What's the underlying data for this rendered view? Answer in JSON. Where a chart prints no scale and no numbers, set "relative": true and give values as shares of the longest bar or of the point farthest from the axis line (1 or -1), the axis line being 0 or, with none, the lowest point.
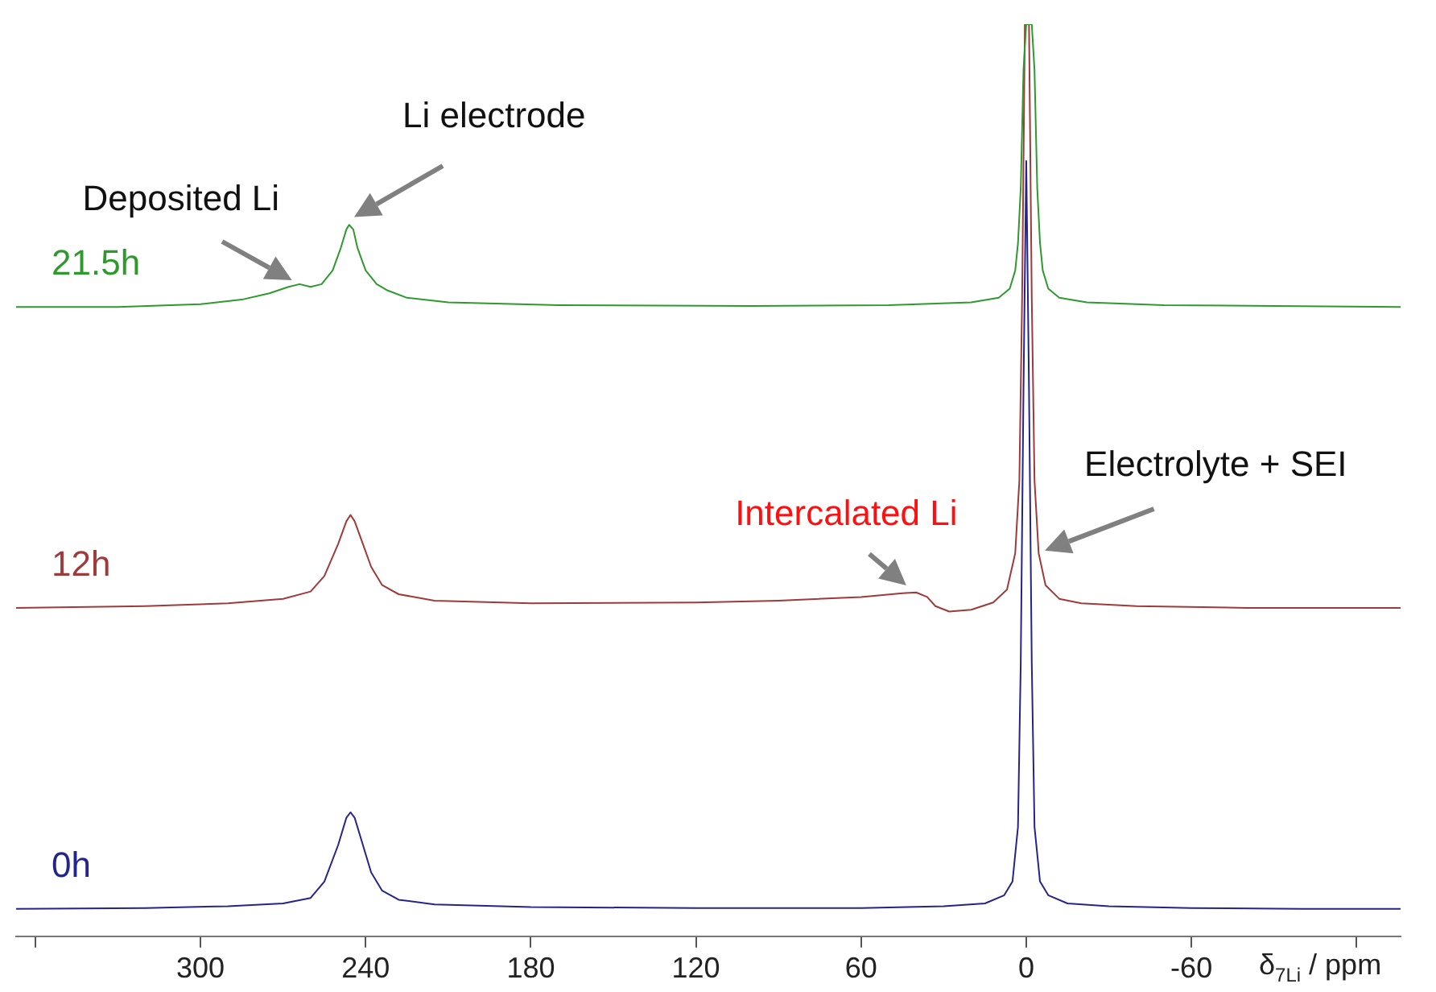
{
  "chart_data": {
    "type": "line",
    "relative": true,
    "xlabel": "δ$_{7Li}$ / ppm",
    "xlim": [
      367,
      -136
    ],
    "xticks": [
      {
        "value": 360,
        "label": null
      },
      300,
      240,
      180,
      120,
      60,
      0,
      -60,
      {
        "value": -120,
        "label": null
      }
    ],
    "grid": false,
    "legend": false,
    "marker": "none",
    "line_style": "solid",
    "tick_labels": "x",
    "series": [
      {
        "name": "21.5h",
        "color": "#2e9a2e",
        "x": [
          367,
          330,
          300,
          285,
          275,
          268,
          264,
          260,
          256,
          252,
          249,
          247,
          246,
          244.5,
          243,
          240,
          236,
          232,
          225,
          210,
          170,
          100,
          50,
          20,
          10,
          6,
          4,
          3,
          2,
          1,
          0,
          -2,
          -3,
          -4,
          -5,
          -6,
          -8,
          -12,
          -22,
          -50,
          -136
        ],
        "values": [
          0.69,
          0.69,
          0.693,
          0.698,
          0.705,
          0.712,
          0.715,
          0.712,
          0.715,
          0.73,
          0.755,
          0.775,
          0.78,
          0.775,
          0.755,
          0.73,
          0.715,
          0.708,
          0.7,
          0.695,
          0.692,
          0.691,
          0.692,
          0.695,
          0.7,
          0.71,
          0.73,
          0.76,
          0.82,
          0.95,
          1,
          1,
          0.95,
          0.82,
          0.76,
          0.73,
          0.71,
          0.7,
          0.695,
          0.692,
          0.69
        ]
      },
      {
        "name": "12h",
        "color": "#a03a3a",
        "x": [
          367,
          320,
          290,
          270,
          260,
          255,
          250,
          247,
          245.5,
          244,
          241,
          238,
          234,
          228,
          215,
          180,
          120,
          90,
          60,
          45,
          40,
          36,
          33,
          28,
          20,
          12,
          7,
          4,
          2.5,
          1.5,
          0.5,
          -1,
          -2,
          -3,
          -4.5,
          -7,
          -12,
          -20,
          -40,
          -80,
          -136
        ],
        "values": [
          0.36,
          0.362,
          0.365,
          0.37,
          0.378,
          0.395,
          0.43,
          0.455,
          0.462,
          0.455,
          0.43,
          0.405,
          0.385,
          0.375,
          0.368,
          0.365,
          0.366,
          0.368,
          0.372,
          0.376,
          0.377,
          0.372,
          0.362,
          0.356,
          0.358,
          0.366,
          0.38,
          0.42,
          0.5,
          0.7,
          1,
          1,
          0.7,
          0.5,
          0.42,
          0.385,
          0.37,
          0.365,
          0.362,
          0.36,
          0.36
        ]
      },
      {
        "name": "0h",
        "color": "#24248c",
        "x": [
          367,
          320,
          290,
          270,
          260,
          255,
          250,
          247,
          245.5,
          244,
          241,
          238,
          234,
          228,
          215,
          180,
          120,
          60,
          30,
          15,
          8,
          5,
          3,
          2,
          1,
          0,
          -1,
          -2,
          -3,
          -5,
          -8,
          -15,
          -30,
          -60,
          -100,
          -136
        ],
        "values": [
          0.03,
          0.031,
          0.033,
          0.036,
          0.042,
          0.06,
          0.1,
          0.13,
          0.136,
          0.13,
          0.1,
          0.07,
          0.05,
          0.04,
          0.035,
          0.032,
          0.031,
          0.031,
          0.033,
          0.036,
          0.045,
          0.06,
          0.12,
          0.3,
          0.6,
          0.85,
          0.6,
          0.3,
          0.12,
          0.06,
          0.045,
          0.036,
          0.033,
          0.031,
          0.03,
          0.03
        ]
      }
    ],
    "annotations": [
      {
        "text": "Deposited Li",
        "x": 265,
        "y": 0.715
      },
      {
        "text": "Li electrode",
        "x": 246,
        "y": 0.785
      },
      {
        "text": "Intercalated Li",
        "x": 42,
        "y": 0.38
      },
      {
        "text": "Electrolyte + SEI",
        "x": -4.5,
        "y": 0.42
      }
    ]
  }
}
